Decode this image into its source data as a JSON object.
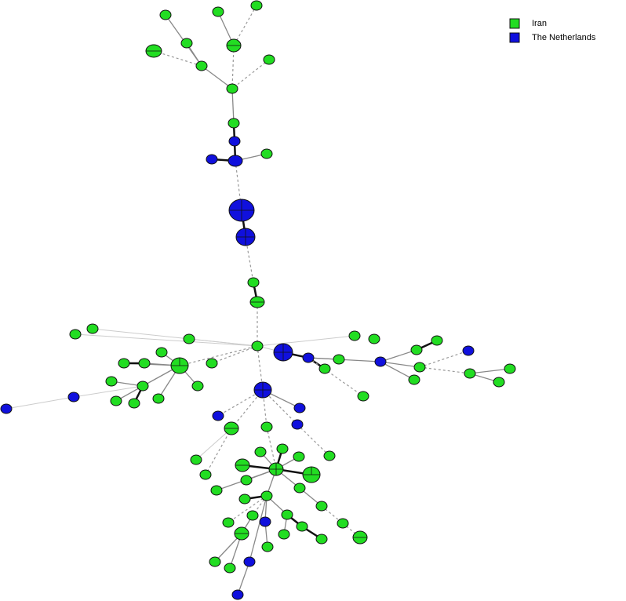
{
  "legend": [
    {
      "label": "Iran",
      "color": "#22dd22"
    },
    {
      "label": "The Netherlands",
      "color": "#1010dd"
    }
  ]
}
